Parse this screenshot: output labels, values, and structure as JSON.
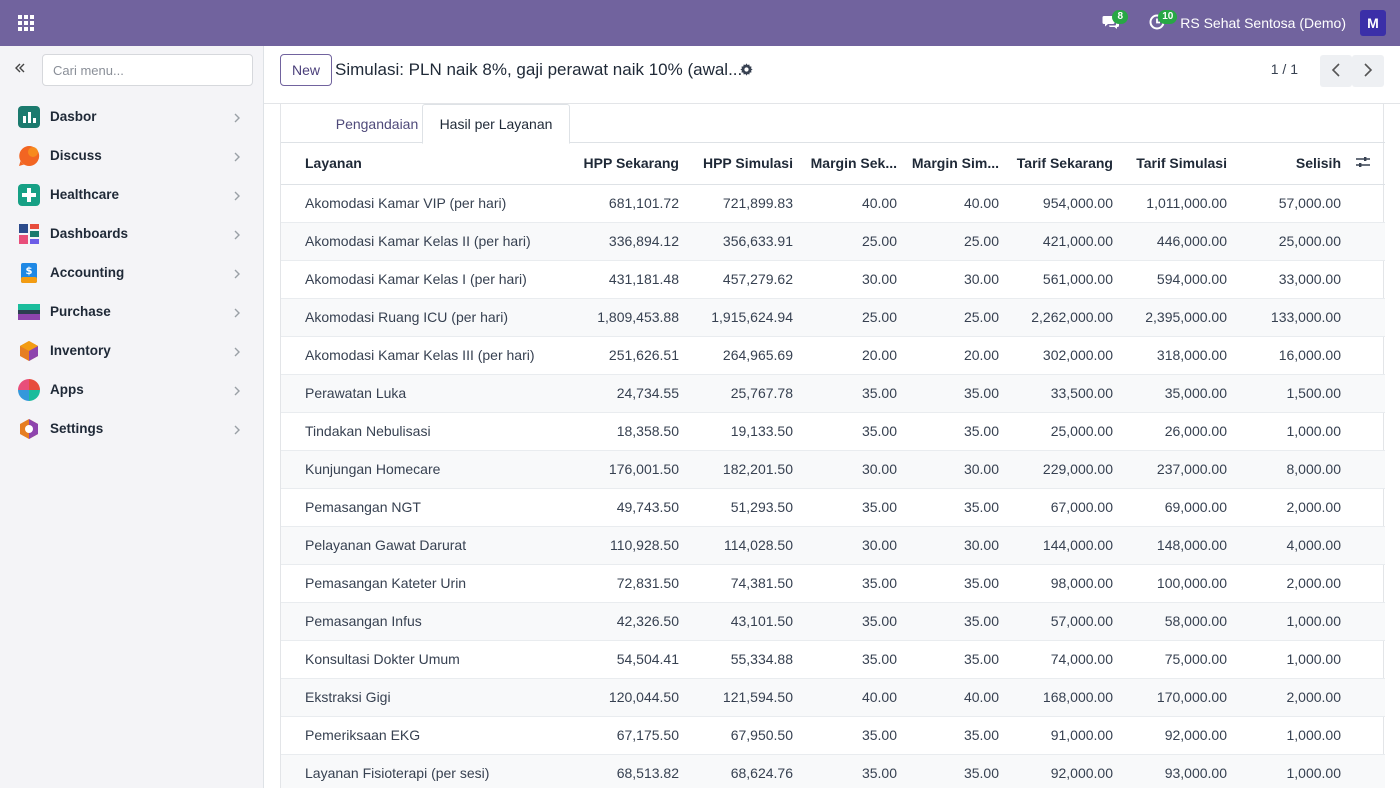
{
  "navbar": {
    "company": "RS Sehat Sentosa (Demo)",
    "messages_count": "8",
    "activities_count": "10",
    "avatar_initial": "M",
    "color": "#71639e"
  },
  "sidebar": {
    "search_placeholder": "Cari menu...",
    "items": [
      {
        "label": "Dasbor",
        "icon": "dashboard-chart-icon"
      },
      {
        "label": "Discuss",
        "icon": "discuss-icon"
      },
      {
        "label": "Healthcare",
        "icon": "healthcare-cross-icon"
      },
      {
        "label": "Dashboards",
        "icon": "dashboards-icon"
      },
      {
        "label": "Accounting",
        "icon": "accounting-icon"
      },
      {
        "label": "Purchase",
        "icon": "purchase-icon"
      },
      {
        "label": "Inventory",
        "icon": "inventory-box-icon"
      },
      {
        "label": "Apps",
        "icon": "apps-icon"
      },
      {
        "label": "Settings",
        "icon": "settings-icon"
      }
    ]
  },
  "control": {
    "new_label": "New",
    "title": "Simulasi: PLN naik 8%, gaji perawat naik 10% (awal...",
    "pager": "1 / 1"
  },
  "tabs": {
    "inactive": "Pengandaian",
    "active": "Hasil per Layanan"
  },
  "table": {
    "headers": [
      "Layanan",
      "HPP Sekarang",
      "HPP Simulasi",
      "Margin Sek...",
      "Margin Sim...",
      "Tarif Sekarang",
      "Tarif Simulasi",
      "Selisih"
    ],
    "rows": [
      [
        "Akomodasi Kamar VIP (per hari)",
        "681,101.72",
        "721,899.83",
        "40.00",
        "40.00",
        "954,000.00",
        "1,011,000.00",
        "57,000.00"
      ],
      [
        "Akomodasi Kamar Kelas II (per hari)",
        "336,894.12",
        "356,633.91",
        "25.00",
        "25.00",
        "421,000.00",
        "446,000.00",
        "25,000.00"
      ],
      [
        "Akomodasi Kamar Kelas I (per hari)",
        "431,181.48",
        "457,279.62",
        "30.00",
        "30.00",
        "561,000.00",
        "594,000.00",
        "33,000.00"
      ],
      [
        "Akomodasi Ruang ICU (per hari)",
        "1,809,453.88",
        "1,915,624.94",
        "25.00",
        "25.00",
        "2,262,000.00",
        "2,395,000.00",
        "133,000.00"
      ],
      [
        "Akomodasi Kamar Kelas III (per hari)",
        "251,626.51",
        "264,965.69",
        "20.00",
        "20.00",
        "302,000.00",
        "318,000.00",
        "16,000.00"
      ],
      [
        "Perawatan Luka",
        "24,734.55",
        "25,767.78",
        "35.00",
        "35.00",
        "33,500.00",
        "35,000.00",
        "1,500.00"
      ],
      [
        "Tindakan Nebulisasi",
        "18,358.50",
        "19,133.50",
        "35.00",
        "35.00",
        "25,000.00",
        "26,000.00",
        "1,000.00"
      ],
      [
        "Kunjungan Homecare",
        "176,001.50",
        "182,201.50",
        "30.00",
        "30.00",
        "229,000.00",
        "237,000.00",
        "8,000.00"
      ],
      [
        "Pemasangan NGT",
        "49,743.50",
        "51,293.50",
        "35.00",
        "35.00",
        "67,000.00",
        "69,000.00",
        "2,000.00"
      ],
      [
        "Pelayanan Gawat Darurat",
        "110,928.50",
        "114,028.50",
        "30.00",
        "30.00",
        "144,000.00",
        "148,000.00",
        "4,000.00"
      ],
      [
        "Pemasangan Kateter Urin",
        "72,831.50",
        "74,381.50",
        "35.00",
        "35.00",
        "98,000.00",
        "100,000.00",
        "2,000.00"
      ],
      [
        "Pemasangan Infus",
        "42,326.50",
        "43,101.50",
        "35.00",
        "35.00",
        "57,000.00",
        "58,000.00",
        "1,000.00"
      ],
      [
        "Konsultasi Dokter Umum",
        "54,504.41",
        "55,334.88",
        "35.00",
        "35.00",
        "74,000.00",
        "75,000.00",
        "1,000.00"
      ],
      [
        "Ekstraksi Gigi",
        "120,044.50",
        "121,594.50",
        "40.00",
        "40.00",
        "168,000.00",
        "170,000.00",
        "2,000.00"
      ],
      [
        "Pemeriksaan EKG",
        "67,175.50",
        "67,950.50",
        "35.00",
        "35.00",
        "91,000.00",
        "92,000.00",
        "1,000.00"
      ],
      [
        "Layanan Fisioterapi (per sesi)",
        "68,513.82",
        "68,624.76",
        "35.00",
        "35.00",
        "92,000.00",
        "93,000.00",
        "1,000.00"
      ]
    ]
  }
}
